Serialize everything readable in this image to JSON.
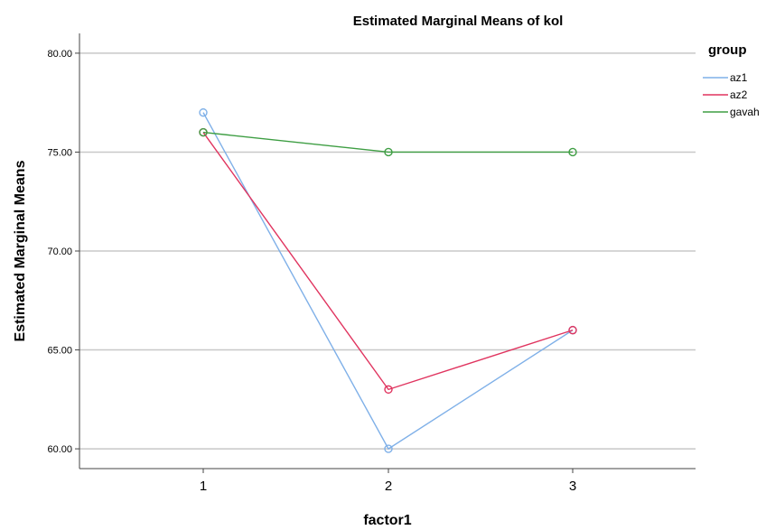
{
  "chart_data": {
    "type": "line",
    "title": "Estimated Marginal Means of kol",
    "xlabel": "factor1",
    "ylabel": "Estimated Marginal Means",
    "categories": [
      "1",
      "2",
      "3"
    ],
    "ylim": [
      59,
      81
    ],
    "yticks": [
      "60.00",
      "65.00",
      "70.00",
      "75.00",
      "80.00"
    ],
    "grid": "horizontal",
    "legend_title": "group",
    "legend_position": "top-right",
    "series": [
      {
        "name": "az1",
        "color": "#7FB0E8",
        "values": [
          77,
          60,
          66
        ]
      },
      {
        "name": "az2",
        "color": "#E0345F",
        "values": [
          76,
          63,
          66
        ]
      },
      {
        "name": "gavah",
        "color": "#3E9E43",
        "values": [
          76,
          75,
          75
        ]
      }
    ]
  }
}
